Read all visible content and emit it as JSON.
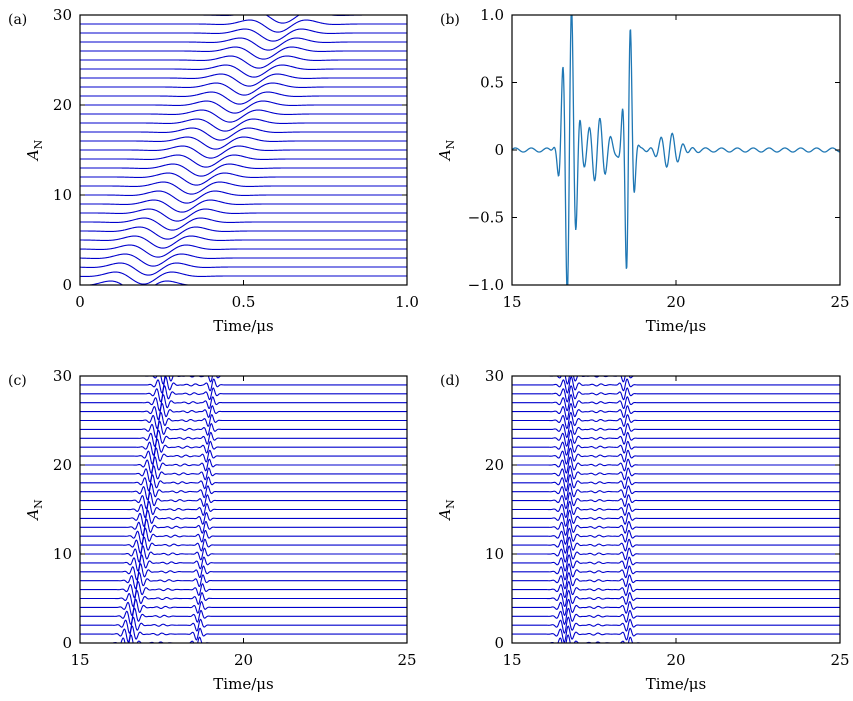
{
  "chart_data": [
    {
      "panel": "(a)",
      "type": "line",
      "xlabel": "Time/μs",
      "ylabel": "A_N",
      "xlim": [
        0,
        1.0
      ],
      "ylim": [
        0,
        30
      ],
      "xticks": [
        "0",
        "0.5",
        "1.0"
      ],
      "yticks": [
        "0",
        "10",
        "20",
        "30"
      ],
      "line_color": "#0000cc",
      "series_count": 31,
      "offsets": "0..30 step 1",
      "description_of_traces": "Two-cycle tone-burst signals offset vertically; arrival time increases from ~0.1 μs (trace 0) to ~0.6 μs (trace 30)",
      "pulse_center_first": 0.18,
      "pulse_center_last": 0.62,
      "pulse_amplitude": 0.9
    },
    {
      "panel": "(b)",
      "type": "line",
      "xlabel": "Time/μs",
      "ylabel": "A_N",
      "xlim": [
        15,
        25
      ],
      "ylim": [
        -1.0,
        1.0
      ],
      "xticks": [
        "15",
        "20",
        "25"
      ],
      "yticks": [
        "−1.0",
        "−0.5",
        "0",
        "0.5",
        "1.0"
      ],
      "line_color": "#1f77b4",
      "packets": [
        {
          "center": 16.75,
          "amplitude": 1.0,
          "width": 0.45
        },
        {
          "center": 18.55,
          "amplitude": 0.9,
          "width": 0.3
        },
        {
          "center": 17.6,
          "amplitude": 0.22,
          "width": 0.7
        },
        {
          "center": 19.8,
          "amplitude": 0.1,
          "width": 0.9
        }
      ]
    },
    {
      "panel": "(c)",
      "type": "line",
      "xlabel": "Time/μs",
      "ylabel": "A_N",
      "xlim": [
        15,
        25
      ],
      "ylim": [
        0,
        30
      ],
      "xticks": [
        "15",
        "20",
        "25"
      ],
      "yticks": [
        "0",
        "10",
        "20",
        "30"
      ],
      "line_color": "#0000cc",
      "series_count": 31,
      "first_packet_center_start": 16.5,
      "first_packet_center_end": 17.6,
      "second_packet_center_start": 18.6,
      "second_packet_center_end": 19.05
    },
    {
      "panel": "(d)",
      "type": "line",
      "xlabel": "Time/μs",
      "ylabel": "A_N",
      "xlim": [
        15,
        25
      ],
      "ylim": [
        0,
        30
      ],
      "xticks": [
        "15",
        "20",
        "25"
      ],
      "yticks": [
        "0",
        "10",
        "20",
        "30"
      ],
      "line_color": "#0000cc",
      "series_count": 31,
      "first_packet_center_start": 16.65,
      "first_packet_center_end": 16.75,
      "second_packet_center_start": 18.55,
      "second_packet_center_end": 18.45
    }
  ]
}
